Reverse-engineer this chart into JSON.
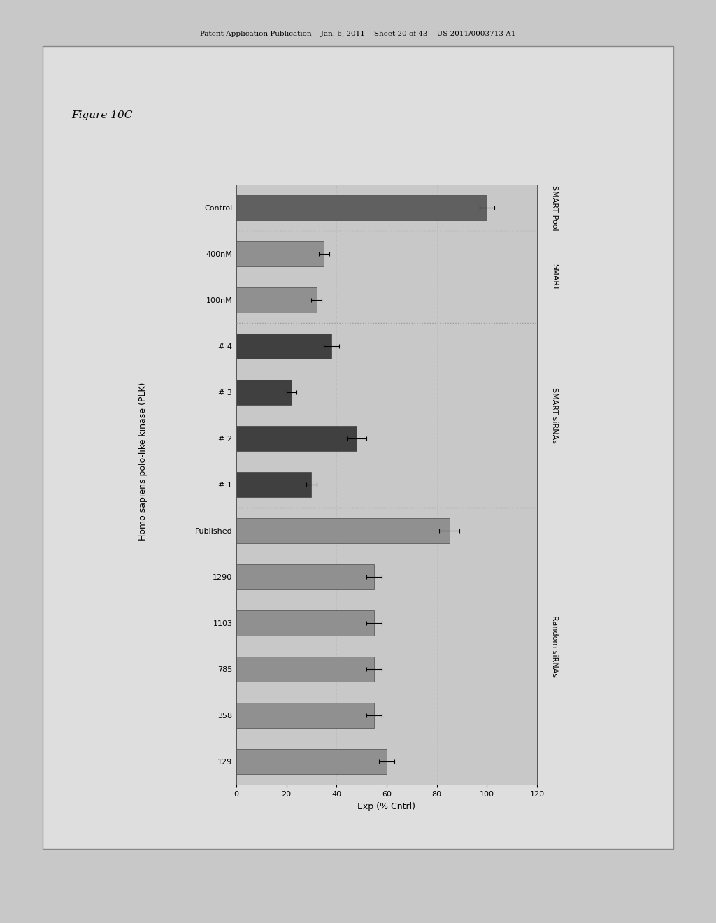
{
  "figure_label": "Figure 10C",
  "title": "Homo sapiens polo-like kinase (PLK)",
  "xlabel": "Exp (% Cntrl)",
  "xlim": [
    0,
    120
  ],
  "xticks": [
    0,
    20,
    40,
    60,
    80,
    100,
    120
  ],
  "categories_top_to_bottom": [
    "Control",
    "400nM",
    "100nM",
    "# 4",
    "# 3",
    "# 2",
    "# 1",
    "Published",
    "1290",
    "1103",
    "785",
    "358",
    "129"
  ],
  "values_top_to_bottom": [
    100,
    35,
    32,
    38,
    22,
    48,
    30,
    85,
    55,
    55,
    55,
    55,
    60
  ],
  "errors_top_to_bottom": [
    3,
    2,
    2,
    3,
    2,
    4,
    2,
    4,
    3,
    3,
    3,
    3,
    3
  ],
  "bar_colors_top_to_bottom": [
    "#606060",
    "#909090",
    "#909090",
    "#404040",
    "#404040",
    "#404040",
    "#404040",
    "#909090",
    "#909090",
    "#909090",
    "#909090",
    "#909090",
    "#909090"
  ],
  "group_right_labels": [
    "SMART Pool",
    "SMART",
    "SMART siRNAs",
    "Random siRNAs"
  ],
  "separators_after_idx": [
    0,
    2,
    6
  ],
  "outer_bg": "#c8c8c8",
  "inner_bg": "#d8d8d8",
  "plot_bg": "#c8c8c8",
  "header_text": "Patent Application Publication    Jan. 6, 2011    Sheet 20 of 43    US 2011/0003713 A1"
}
